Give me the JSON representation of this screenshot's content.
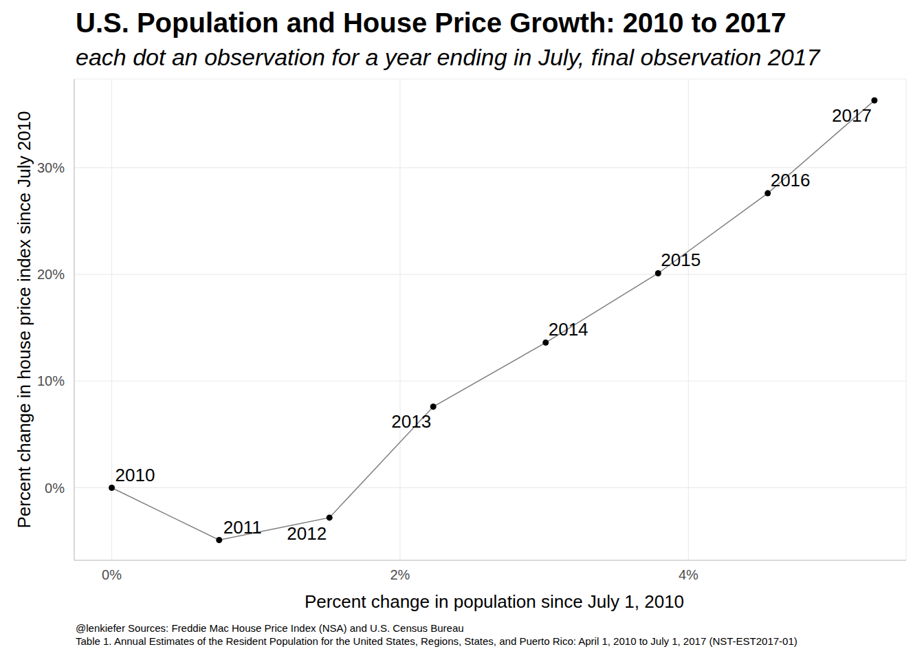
{
  "chart_data": {
    "type": "scatter",
    "title": "U.S. Population and House Price Growth: 2010 to 2017",
    "subtitle": "each dot an observation for a year ending in July, final observation 2017",
    "x_label": "Percent change in population since July 1, 2010",
    "y_label": "Percent change in house price index since July 2010",
    "caption": [
      "@lenkiefer Sources: Freddie Mac House Price Index (NSA) and U.S. Census Bureau",
      "Table 1. Annual Estimates of the Resident Population for the United States, Regions, States, and Puerto Rico: April 1, 2010 to July 1, 2017 (NST-EST2017-01)"
    ],
    "x": [
      0,
      0.745,
      1.51,
      2.23,
      3.01,
      3.79,
      4.55,
      5.29
    ],
    "values": [
      0,
      -4.9,
      -2.8,
      7.6,
      13.6,
      20.1,
      27.6,
      36.3
    ],
    "point_labels": [
      "2010",
      "2011",
      "2012",
      "2013",
      "2014",
      "2015",
      "2016",
      "2017"
    ],
    "color": "#000000",
    "marker": "circle",
    "line_style": "solid",
    "xlim": [
      -0.26,
      5.51
    ],
    "ylim": [
      -6.8,
      38.3
    ],
    "xticks": [
      {
        "value": 0,
        "label": "0%"
      },
      {
        "value": 2,
        "label": "2%"
      },
      {
        "value": 4,
        "label": "4%"
      }
    ],
    "yticks": [
      {
        "value": 0,
        "label": "0%"
      },
      {
        "value": 10,
        "label": "10%"
      },
      {
        "value": 20,
        "label": "20%"
      },
      {
        "value": 30,
        "label": "30%"
      }
    ],
    "grid": true
  }
}
